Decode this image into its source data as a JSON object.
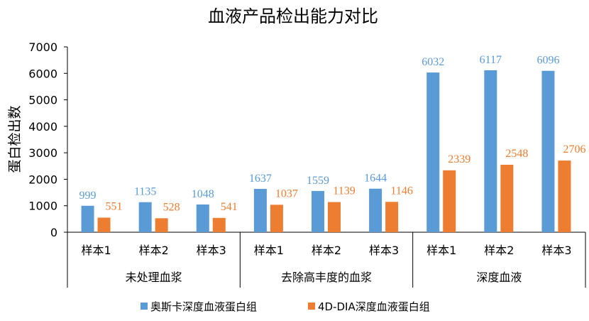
{
  "chart_data": {
    "type": "bar",
    "title": "血液产品检出能力对比",
    "ylabel": "蛋白检出数",
    "xlabel": "",
    "ylim": [
      0,
      7000
    ],
    "yticks": [
      "0",
      "1000",
      "2000",
      "3000",
      "4000",
      "5000",
      "6000",
      "7000"
    ],
    "grid": false,
    "legend_position": "bottom",
    "groups": [
      {
        "label": "未处理血浆",
        "categories": [
          "样本1",
          "样本2",
          "样本3"
        ]
      },
      {
        "label": "去除高丰度的血浆",
        "categories": [
          "样本1",
          "样本2",
          "样本3"
        ]
      },
      {
        "label": "深度血液",
        "categories": [
          "样本1",
          "样本2",
          "样本3"
        ]
      }
    ],
    "series": [
      {
        "name": "奥斯卡深度血液蛋白组",
        "color": "#5b9bd5",
        "values": [
          999,
          1135,
          1048,
          1637,
          1559,
          1644,
          6032,
          6117,
          6096
        ]
      },
      {
        "name": "4D-DIA深度血液蛋白组",
        "color": "#ed7d31",
        "values": [
          551,
          528,
          541,
          1037,
          1139,
          1146,
          2339,
          2548,
          2706
        ]
      }
    ]
  }
}
